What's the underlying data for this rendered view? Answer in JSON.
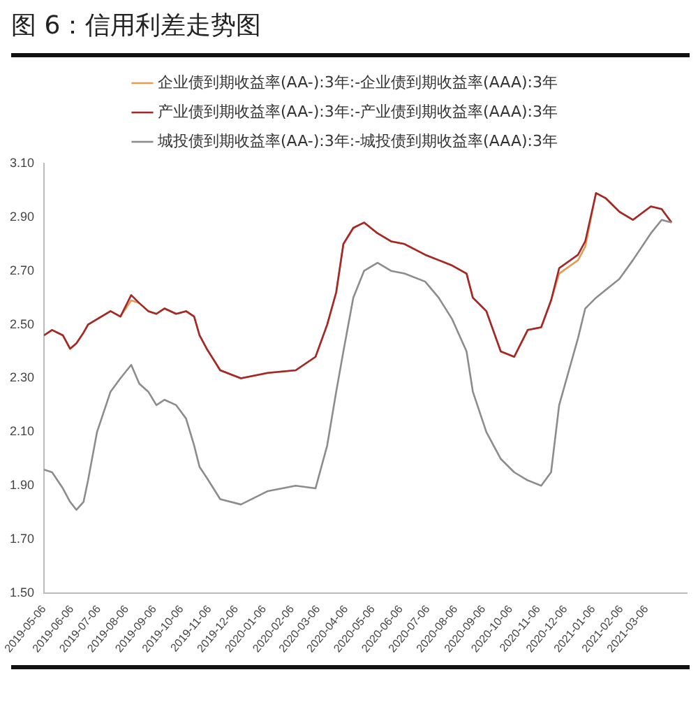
{
  "chart_data": {
    "type": "line",
    "title": "图 6：信用利差走势图",
    "x": [
      "2019-05-06",
      "2019-05-15",
      "2019-05-27",
      "2019-06-04",
      "2019-06-11",
      "2019-06-19",
      "2019-06-24",
      "2019-07-04",
      "2019-07-19",
      "2019-07-30",
      "2019-08-11",
      "2019-08-20",
      "2019-08-30",
      "2019-09-08",
      "2019-09-17",
      "2019-09-30",
      "2019-10-11",
      "2019-10-20",
      "2019-10-26",
      "2019-11-03",
      "2019-11-18",
      "2019-12-11",
      "2020-01-10",
      "2020-02-10",
      "2020-03-03",
      "2020-03-16",
      "2020-03-26",
      "2020-04-03",
      "2020-04-14",
      "2020-04-26",
      "2020-05-11",
      "2020-05-26",
      "2020-06-10",
      "2020-07-03",
      "2020-07-18",
      "2020-08-02",
      "2020-08-18",
      "2020-08-25",
      "2020-09-09",
      "2020-09-25",
      "2020-10-10",
      "2020-10-25",
      "2020-11-09",
      "2020-11-20",
      "2020-11-29",
      "2020-12-20",
      "2020-12-28",
      "2021-01-09",
      "2021-01-20",
      "2021-02-04",
      "2021-02-19",
      "2021-03-11",
      "2021-03-23",
      "2021-04-03"
    ],
    "series": [
      {
        "name": "企业债到期收益率(AA-):3年:-企业债到期收益率(AAA):3年",
        "color": "#e59b52",
        "values": [
          2.46,
          2.48,
          2.46,
          2.41,
          2.43,
          2.47,
          2.5,
          2.52,
          2.55,
          2.53,
          2.59,
          2.58,
          2.55,
          2.54,
          2.56,
          2.54,
          2.55,
          2.53,
          2.46,
          2.41,
          2.33,
          2.3,
          2.32,
          2.33,
          2.38,
          2.5,
          2.62,
          2.8,
          2.86,
          2.88,
          2.84,
          2.81,
          2.8,
          2.76,
          2.74,
          2.72,
          2.69,
          2.6,
          2.55,
          2.4,
          2.38,
          2.48,
          2.49,
          2.59,
          2.69,
          2.74,
          2.79,
          2.99,
          2.97,
          2.92,
          2.89,
          2.94,
          2.93,
          2.88
        ]
      },
      {
        "name": "产业债到期收益率(AA-):3年:-产业债到期收益率(AAA):3年",
        "color": "#a3282b",
        "values": [
          2.46,
          2.48,
          2.46,
          2.41,
          2.43,
          2.47,
          2.5,
          2.52,
          2.55,
          2.53,
          2.61,
          2.58,
          2.55,
          2.54,
          2.56,
          2.54,
          2.55,
          2.53,
          2.46,
          2.41,
          2.33,
          2.3,
          2.32,
          2.33,
          2.38,
          2.5,
          2.62,
          2.8,
          2.86,
          2.88,
          2.84,
          2.81,
          2.8,
          2.76,
          2.74,
          2.72,
          2.69,
          2.6,
          2.55,
          2.4,
          2.38,
          2.48,
          2.49,
          2.59,
          2.71,
          2.76,
          2.81,
          2.99,
          2.97,
          2.92,
          2.89,
          2.94,
          2.93,
          2.88
        ]
      },
      {
        "name": "城投债到期收益率(AA-):3年:-城投债到期收益率(AAA):3年",
        "color": "#8c8c8c",
        "values": [
          1.96,
          1.95,
          1.89,
          1.84,
          1.81,
          1.84,
          1.92,
          2.1,
          2.25,
          2.3,
          2.35,
          2.28,
          2.25,
          2.2,
          2.22,
          2.2,
          2.15,
          2.05,
          1.97,
          1.93,
          1.85,
          1.83,
          1.88,
          1.9,
          1.89,
          2.05,
          2.25,
          2.4,
          2.6,
          2.7,
          2.73,
          2.7,
          2.69,
          2.66,
          2.6,
          2.52,
          2.4,
          2.25,
          2.1,
          2.0,
          1.95,
          1.92,
          1.9,
          1.95,
          2.2,
          2.45,
          2.56,
          2.6,
          2.63,
          2.67,
          2.74,
          2.84,
          2.89,
          2.88
        ]
      }
    ],
    "xlim": [
      "2019-05-06",
      "2021-04-20"
    ],
    "xticks": [
      "2019-05-06",
      "2019-06-06",
      "2019-07-06",
      "2019-08-06",
      "2019-09-06",
      "2019-10-06",
      "2019-11-06",
      "2019-12-06",
      "2020-01-06",
      "2020-02-06",
      "2020-03-06",
      "2020-04-06",
      "2020-05-06",
      "2020-06-06",
      "2020-07-06",
      "2020-08-06",
      "2020-09-06",
      "2020-10-06",
      "2020-11-06",
      "2020-12-06",
      "2021-01-06",
      "2021-02-06",
      "2021-03-06"
    ],
    "ylim": [
      1.5,
      3.1
    ],
    "yticks": [
      {
        "value": 1.5,
        "label": "1.50"
      },
      {
        "value": 1.7,
        "label": "1.70"
      },
      {
        "value": 1.9,
        "label": "1.90"
      },
      {
        "value": 2.1,
        "label": "2.10"
      },
      {
        "value": 2.3,
        "label": "2.30"
      },
      {
        "value": 2.5,
        "label": "2.50"
      },
      {
        "value": 2.7,
        "label": "2.70"
      },
      {
        "value": 2.9,
        "label": "2.90"
      },
      {
        "value": 3.1,
        "label": "3.10"
      }
    ],
    "legend": "top",
    "marker": "none",
    "line_style": "solid"
  }
}
